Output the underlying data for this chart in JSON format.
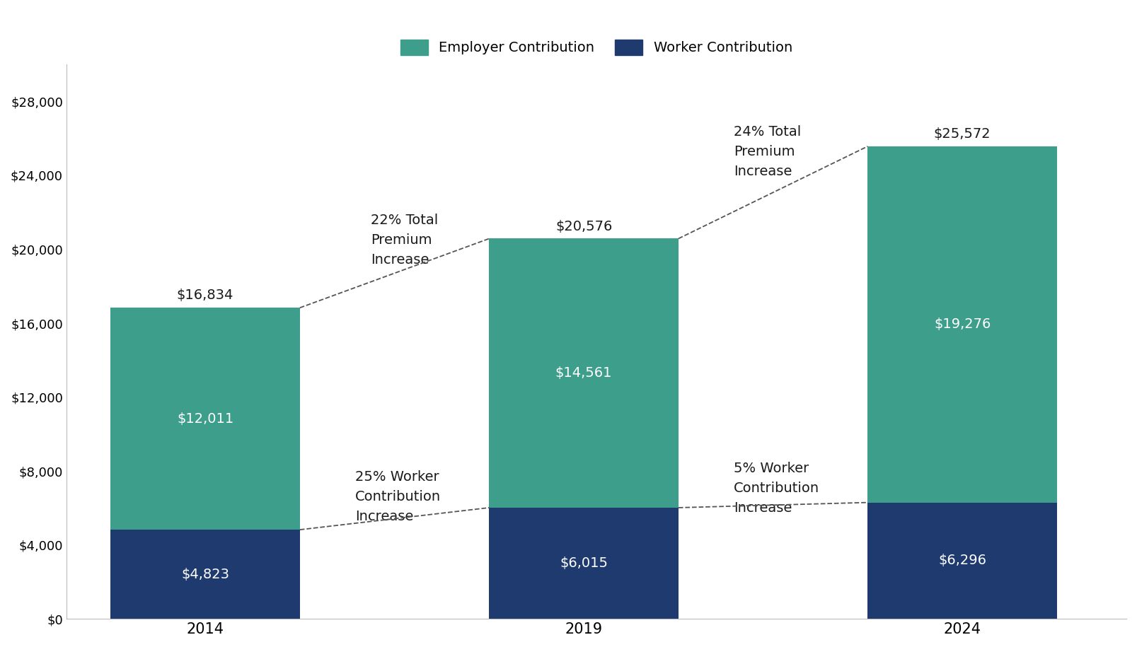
{
  "years": [
    "2014",
    "2019",
    "2024"
  ],
  "x_positions": [
    0.5,
    2.0,
    3.5
  ],
  "employer_values": [
    12011,
    14561,
    19276
  ],
  "worker_values": [
    4823,
    6015,
    6296
  ],
  "total_values": [
    16834,
    20576,
    25572
  ],
  "employer_color": "#3d9e8c",
  "worker_color": "#1e3a6e",
  "employer_label": "Employer Contribution",
  "worker_label": "Worker Contribution",
  "ylim": [
    0,
    30000
  ],
  "yticks": [
    0,
    4000,
    8000,
    12000,
    16000,
    20000,
    24000,
    28000
  ],
  "annotation_total_1": "22% Total\nPremium\nIncrease",
  "annotation_total_2": "24% Total\nPremium\nIncrease",
  "annotation_worker_1": "25% Worker\nContribution\nIncrease",
  "annotation_worker_2": "5% Worker\nContribution\nIncrease",
  "bar_width": 0.75,
  "background_color": "#ffffff",
  "text_color": "#1a1a1a",
  "fontsize_labels": 14,
  "fontsize_ticks": 13,
  "fontsize_legend": 14,
  "fontsize_bar_text": 14
}
